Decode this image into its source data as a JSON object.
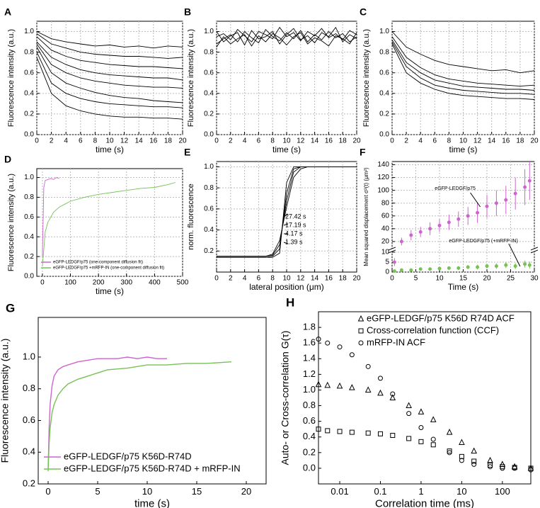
{
  "chart_data": [
    {
      "type": "line",
      "panel": "A",
      "xlabel": "time (s)",
      "ylabel": "Fluorescence intensity (a.u.)",
      "x": [
        0,
        2,
        4,
        6,
        8,
        10,
        12,
        14,
        16,
        18,
        20
      ],
      "xlim": [
        0,
        20
      ],
      "xticks": [
        0,
        2,
        4,
        6,
        8,
        10,
        12,
        14,
        16,
        18,
        20
      ],
      "ylim": [
        0,
        1.1
      ],
      "yticks": [
        {
          "value": 0,
          "label": "0.0"
        },
        0.2,
        0.4,
        0.6,
        0.8,
        {
          "value": 1,
          "label": "1.0"
        }
      ],
      "grid": true,
      "series": [
        {
          "color": "#000000",
          "values": [
            1.0,
            0.93,
            0.9,
            0.88,
            0.86,
            0.87,
            0.85,
            0.86,
            0.84,
            0.86,
            0.85
          ]
        },
        {
          "color": "#000000",
          "values": [
            0.98,
            0.88,
            0.84,
            0.8,
            0.78,
            0.77,
            0.76,
            0.76,
            0.75,
            0.74,
            0.75
          ]
        },
        {
          "color": "#000000",
          "values": [
            0.95,
            0.82,
            0.76,
            0.72,
            0.7,
            0.68,
            0.67,
            0.66,
            0.66,
            0.65,
            0.64
          ]
        },
        {
          "color": "#000000",
          "values": [
            0.9,
            0.75,
            0.68,
            0.63,
            0.6,
            0.58,
            0.57,
            0.56,
            0.55,
            0.55,
            0.53
          ]
        },
        {
          "color": "#000000",
          "values": [
            0.88,
            0.68,
            0.6,
            0.55,
            0.52,
            0.5,
            0.48,
            0.47,
            0.46,
            0.46,
            0.45
          ]
        },
        {
          "color": "#000000",
          "values": [
            0.85,
            0.6,
            0.5,
            0.45,
            0.41,
            0.38,
            0.36,
            0.35,
            0.33,
            0.32,
            0.31
          ]
        },
        {
          "color": "#000000",
          "values": [
            0.8,
            0.5,
            0.4,
            0.35,
            0.32,
            0.3,
            0.29,
            0.28,
            0.27,
            0.27,
            0.26
          ]
        },
        {
          "color": "#000000",
          "values": [
            0.75,
            0.4,
            0.28,
            0.23,
            0.2,
            0.18,
            0.17,
            0.17,
            0.16,
            0.16,
            0.15
          ]
        }
      ]
    },
    {
      "type": "line",
      "panel": "B",
      "xlabel": "time (s)",
      "ylabel": "Fluorescence intensity (a.u.)",
      "x": [
        0,
        1,
        2,
        3,
        4,
        5,
        6,
        7,
        8,
        9,
        10,
        11,
        12,
        13,
        14,
        15,
        16,
        17,
        18,
        19,
        20
      ],
      "xlim": [
        0,
        20
      ],
      "xticks": [
        0,
        2,
        4,
        6,
        8,
        10,
        12,
        14,
        16,
        18,
        20
      ],
      "ylim": [
        0,
        1.1
      ],
      "yticks": [
        {
          "value": 0,
          "label": "0.0"
        },
        0.2,
        0.4,
        0.6,
        0.8,
        {
          "value": 1,
          "label": "1.0"
        }
      ],
      "grid": true,
      "series": [
        {
          "color": "#000000",
          "values": [
            0.95,
            0.98,
            0.92,
            1.02,
            0.96,
            0.9,
            1.0,
            0.97,
            0.93,
            1.04,
            0.95,
            0.99,
            0.91,
            1.0,
            0.96,
            1.03,
            0.94,
            0.98,
            0.92,
            1.01,
            0.97
          ]
        },
        {
          "color": "#000000",
          "values": [
            0.88,
            0.93,
            0.97,
            0.9,
            1.0,
            0.94,
            0.89,
            1.02,
            0.95,
            0.91,
            0.99,
            0.93,
            1.01,
            0.9,
            0.97,
            0.92,
            1.0,
            0.94,
            0.98,
            0.9,
            0.95
          ]
        },
        {
          "color": "#000000",
          "values": [
            1.0,
            0.9,
            0.96,
            0.99,
            0.87,
            1.01,
            0.93,
            0.95,
            1.0,
            0.88,
            0.97,
            1.03,
            0.92,
            0.96,
            0.89,
            0.99,
            0.95,
            1.04,
            0.9,
            0.97,
            0.93
          ]
        },
        {
          "color": "#000000",
          "values": [
            0.85,
            0.95,
            0.88,
            0.93,
            0.97,
            0.86,
            0.96,
            0.9,
            0.98,
            0.94,
            0.87,
            0.95,
            0.99,
            0.88,
            0.94,
            0.91,
            0.86,
            0.96,
            0.93,
            0.88,
            0.99
          ]
        }
      ]
    },
    {
      "type": "line",
      "panel": "C",
      "xlabel": "time (s)",
      "ylabel": "Fluorescence intensity (a.u.)",
      "x": [
        0,
        2,
        4,
        6,
        8,
        10,
        12,
        14,
        16,
        18,
        20
      ],
      "xlim": [
        0,
        20
      ],
      "xticks": [
        0,
        2,
        4,
        6,
        8,
        10,
        12,
        14,
        16,
        18,
        20
      ],
      "ylim": [
        0,
        1.1
      ],
      "yticks": [
        {
          "value": 0,
          "label": "0.0"
        },
        0.2,
        0.4,
        0.6,
        0.8,
        {
          "value": 1,
          "label": "1.0"
        }
      ],
      "grid": true,
      "series": [
        {
          "color": "#000000",
          "values": [
            1.0,
            0.85,
            0.78,
            0.72,
            0.68,
            0.66,
            0.64,
            0.62,
            0.63,
            0.6,
            0.62
          ]
        },
        {
          "color": "#000000",
          "values": [
            0.95,
            0.75,
            0.65,
            0.58,
            0.54,
            0.52,
            0.5,
            0.49,
            0.48,
            0.47,
            0.48
          ]
        },
        {
          "color": "#000000",
          "values": [
            0.92,
            0.7,
            0.6,
            0.53,
            0.5,
            0.47,
            0.46,
            0.45,
            0.44,
            0.44,
            0.43
          ]
        },
        {
          "color": "#000000",
          "values": [
            0.9,
            0.66,
            0.55,
            0.48,
            0.45,
            0.43,
            0.42,
            0.41,
            0.4,
            0.4,
            0.39
          ]
        },
        {
          "color": "#000000",
          "values": [
            0.88,
            0.6,
            0.5,
            0.44,
            0.4,
            0.38,
            0.37,
            0.36,
            0.35,
            0.35,
            0.34
          ]
        }
      ]
    },
    {
      "type": "line",
      "panel": "D",
      "xlabel": "time (s)",
      "ylabel": "Fluorescence intensity (a.u.)",
      "xlim": [
        -20,
        500
      ],
      "xticks": [
        0,
        100,
        200,
        300,
        400,
        500
      ],
      "ylim": [
        0,
        1.09
      ],
      "yticks": [
        {
          "value": 0,
          "label": "0.0"
        },
        0.2,
        0.4,
        0.6,
        0.8,
        {
          "value": 1,
          "label": "1.0"
        }
      ],
      "grid": true,
      "legend": "lower right",
      "series": [
        {
          "name": "eGFP-LEDGF/p75 (one-component diffusion fit)",
          "color": "#cc66cc",
          "x": [
            0,
            5,
            10,
            20,
            30,
            40,
            50,
            60
          ],
          "values": [
            0.2,
            0.9,
            0.97,
            0.98,
            0.99,
            0.98,
            1.0,
            0.99
          ]
        },
        {
          "name": "eGFP-LEDGF/p75 +mRFP-IN (one-component diffusion fit)",
          "color": "#77c255",
          "x": [
            0,
            10,
            20,
            40,
            60,
            80,
            100,
            150,
            200,
            250,
            300,
            350,
            400,
            450,
            475
          ],
          "values": [
            0.1,
            0.45,
            0.55,
            0.65,
            0.7,
            0.73,
            0.76,
            0.8,
            0.83,
            0.85,
            0.87,
            0.89,
            0.9,
            0.93,
            0.95
          ]
        }
      ]
    },
    {
      "type": "line",
      "panel": "E",
      "xlabel": "lateral position (μm)",
      "ylabel": "norm. fluorescence",
      "x": [
        0,
        1,
        2,
        3,
        4,
        5,
        6,
        7,
        8,
        9,
        10,
        11,
        12,
        13,
        14,
        15,
        16,
        17,
        18,
        19,
        20
      ],
      "xlim": [
        0,
        20
      ],
      "xticks": [
        0,
        2,
        4,
        6,
        8,
        10,
        12,
        14,
        16,
        18,
        20
      ],
      "ylim": [
        0,
        1.05
      ],
      "yticks": [
        0.2,
        0.4,
        0.6,
        0.8,
        {
          "value": 1,
          "label": "1.0"
        }
      ],
      "grid": true,
      "annotations": [
        "27.42 s",
        "17.19 s",
        "4.17 s",
        "1.39 s"
      ],
      "series": [
        {
          "color": "#000000",
          "values": [
            0.15,
            0.15,
            0.15,
            0.15,
            0.15,
            0.15,
            0.15,
            0.15,
            0.17,
            0.3,
            0.62,
            0.9,
            0.98,
            1,
            1,
            1,
            1,
            1,
            1,
            1,
            1
          ]
        },
        {
          "color": "#000000",
          "values": [
            0.15,
            0.15,
            0.15,
            0.15,
            0.15,
            0.15,
            0.15,
            0.15,
            0.16,
            0.26,
            0.68,
            0.95,
            1,
            1,
            1,
            1,
            1,
            1,
            1,
            1,
            1
          ]
        },
        {
          "color": "#000000",
          "values": [
            0.14,
            0.14,
            0.14,
            0.14,
            0.14,
            0.14,
            0.14,
            0.14,
            0.15,
            0.22,
            0.75,
            0.98,
            1,
            1,
            1,
            1,
            1,
            1,
            1,
            1,
            1
          ]
        },
        {
          "color": "#000000",
          "values": [
            0.14,
            0.14,
            0.14,
            0.14,
            0.14,
            0.14,
            0.14,
            0.14,
            0.14,
            0.18,
            0.85,
            1,
            1,
            1,
            1,
            1,
            1,
            1,
            1,
            1,
            1
          ]
        }
      ]
    },
    {
      "type": "scatter",
      "panel": "F",
      "xlabel": "Time (s)",
      "ylabel": "Mean squared displacement σ²(t) (μm²)",
      "xlim": [
        0,
        30
      ],
      "xticks": [
        0,
        5,
        10,
        15,
        20,
        25,
        30
      ],
      "ylim": [
        0,
        145
      ],
      "ybreak": 10,
      "yticks": [
        0,
        5,
        10,
        20,
        40,
        60,
        80,
        100,
        120,
        140
      ],
      "grid": true,
      "legend": "inline",
      "series": [
        {
          "name": "eGFP-LEDGF/p75",
          "color": "#cc66cc",
          "x": [
            0.5,
            2,
            4,
            6,
            8,
            10,
            12,
            14,
            16,
            18,
            20,
            22,
            24,
            26,
            28,
            29
          ],
          "values": [
            5,
            20,
            30,
            35,
            40,
            45,
            50,
            55,
            60,
            65,
            75,
            80,
            85,
            95,
            105,
            115
          ],
          "errors": [
            2,
            6,
            8,
            8,
            10,
            10,
            12,
            12,
            14,
            16,
            18,
            20,
            22,
            25,
            28,
            30
          ]
        },
        {
          "name": "eGFP-LEDGF/p75 (+mRFP-IN)",
          "color": "#77c255",
          "x": [
            0.5,
            2,
            4,
            6,
            8,
            10,
            12,
            14,
            16,
            18,
            20,
            22,
            24,
            26,
            28,
            29
          ],
          "values": [
            0.5,
            1,
            1,
            1.5,
            1.5,
            1.8,
            2,
            2,
            2.5,
            2.5,
            3,
            3,
            3.5,
            3,
            4,
            3.5
          ],
          "errors": [
            0.3,
            0.5,
            0.5,
            0.6,
            0.6,
            0.8,
            0.8,
            1,
            1,
            1.2,
            1.2,
            1.4,
            1.5,
            1.5,
            1.8,
            1.8
          ]
        }
      ]
    },
    {
      "type": "line",
      "panel": "G",
      "xlabel": "time (s)",
      "ylabel": "Fluorescence intensity (a.u.)",
      "xlim": [
        -1,
        22
      ],
      "xticks": [
        0,
        5,
        10,
        15,
        20
      ],
      "ylim": [
        0.2,
        1.25
      ],
      "yticks": [
        0.2,
        0.4,
        0.6,
        0.8,
        {
          "value": 1,
          "label": "1.0"
        }
      ],
      "grid": false,
      "legend": "lower left",
      "series": [
        {
          "name": "eGFP-LEDGF/p75 K56D-R74D",
          "color": "#cc66cc",
          "x": [
            0,
            0.1,
            0.2,
            0.4,
            0.6,
            1,
            1.5,
            2,
            3,
            4,
            5,
            6,
            7,
            8,
            9,
            10,
            11,
            12
          ],
          "values": [
            0.3,
            0.55,
            0.7,
            0.82,
            0.88,
            0.92,
            0.94,
            0.95,
            0.97,
            0.98,
            0.99,
            0.99,
            0.99,
            1.0,
            0.99,
            1.0,
            0.99,
            0.99
          ]
        },
        {
          "name": "eGFP-LEDGF/p75 K56D-R74D + mRFP-IN",
          "color": "#77c255",
          "x": [
            0,
            0.1,
            0.2,
            0.4,
            0.6,
            1,
            1.5,
            2,
            3,
            4,
            5,
            6,
            8,
            10,
            12,
            14,
            16,
            18.5
          ],
          "values": [
            0.28,
            0.45,
            0.55,
            0.65,
            0.7,
            0.76,
            0.8,
            0.83,
            0.86,
            0.88,
            0.9,
            0.92,
            0.93,
            0.95,
            0.95,
            0.96,
            0.96,
            0.97
          ]
        }
      ]
    },
    {
      "type": "scatter",
      "panel": "H",
      "xlabel": "Correlation time (ms)",
      "ylabel": "Auto- or Cross-correlation G(τ)",
      "x": [
        0.003,
        0.005,
        0.01,
        0.02,
        0.05,
        0.1,
        0.2,
        0.5,
        1,
        2,
        5,
        10,
        20,
        50,
        100,
        200,
        500
      ],
      "xscale": "log",
      "xlim": [
        0.003,
        500
      ],
      "xticks": [
        0.01,
        0.1,
        1,
        10,
        100
      ],
      "ylim": [
        -0.2,
        2.0
      ],
      "yticks": [
        {
          "value": 0,
          "label": "0.0"
        },
        0.2,
        0.4,
        0.6,
        0.8,
        {
          "value": 1,
          "label": "1.0"
        },
        1.2,
        1.4,
        1.6,
        1.8
      ],
      "grid": false,
      "legend": "upper right",
      "series": [
        {
          "name": "eGFP-LEDGF/p75 K56D R74D ACF",
          "color": "#000000",
          "marker": "triangle",
          "values": [
            1.07,
            1.06,
            1.05,
            1.03,
            1.0,
            0.96,
            0.9,
            0.8,
            0.72,
            0.62,
            0.46,
            0.33,
            0.22,
            0.1,
            0.05,
            0.02,
            0.0
          ]
        },
        {
          "name": "Cross-correlation function (CCF)",
          "color": "#000000",
          "marker": "square",
          "values": [
            0.5,
            0.48,
            0.47,
            0.46,
            0.45,
            0.44,
            0.42,
            0.38,
            0.34,
            0.3,
            0.22,
            0.15,
            0.09,
            0.04,
            0.02,
            0.01,
            0.0
          ]
        },
        {
          "name": "mRFP-IN ACF",
          "color": "#000000",
          "marker": "circle",
          "values": [
            1.65,
            1.6,
            1.55,
            1.45,
            1.3,
            1.15,
            0.95,
            0.7,
            0.52,
            0.37,
            0.2,
            0.1,
            0.05,
            0.02,
            0.0,
            0.0,
            -0.02
          ]
        }
      ]
    }
  ]
}
